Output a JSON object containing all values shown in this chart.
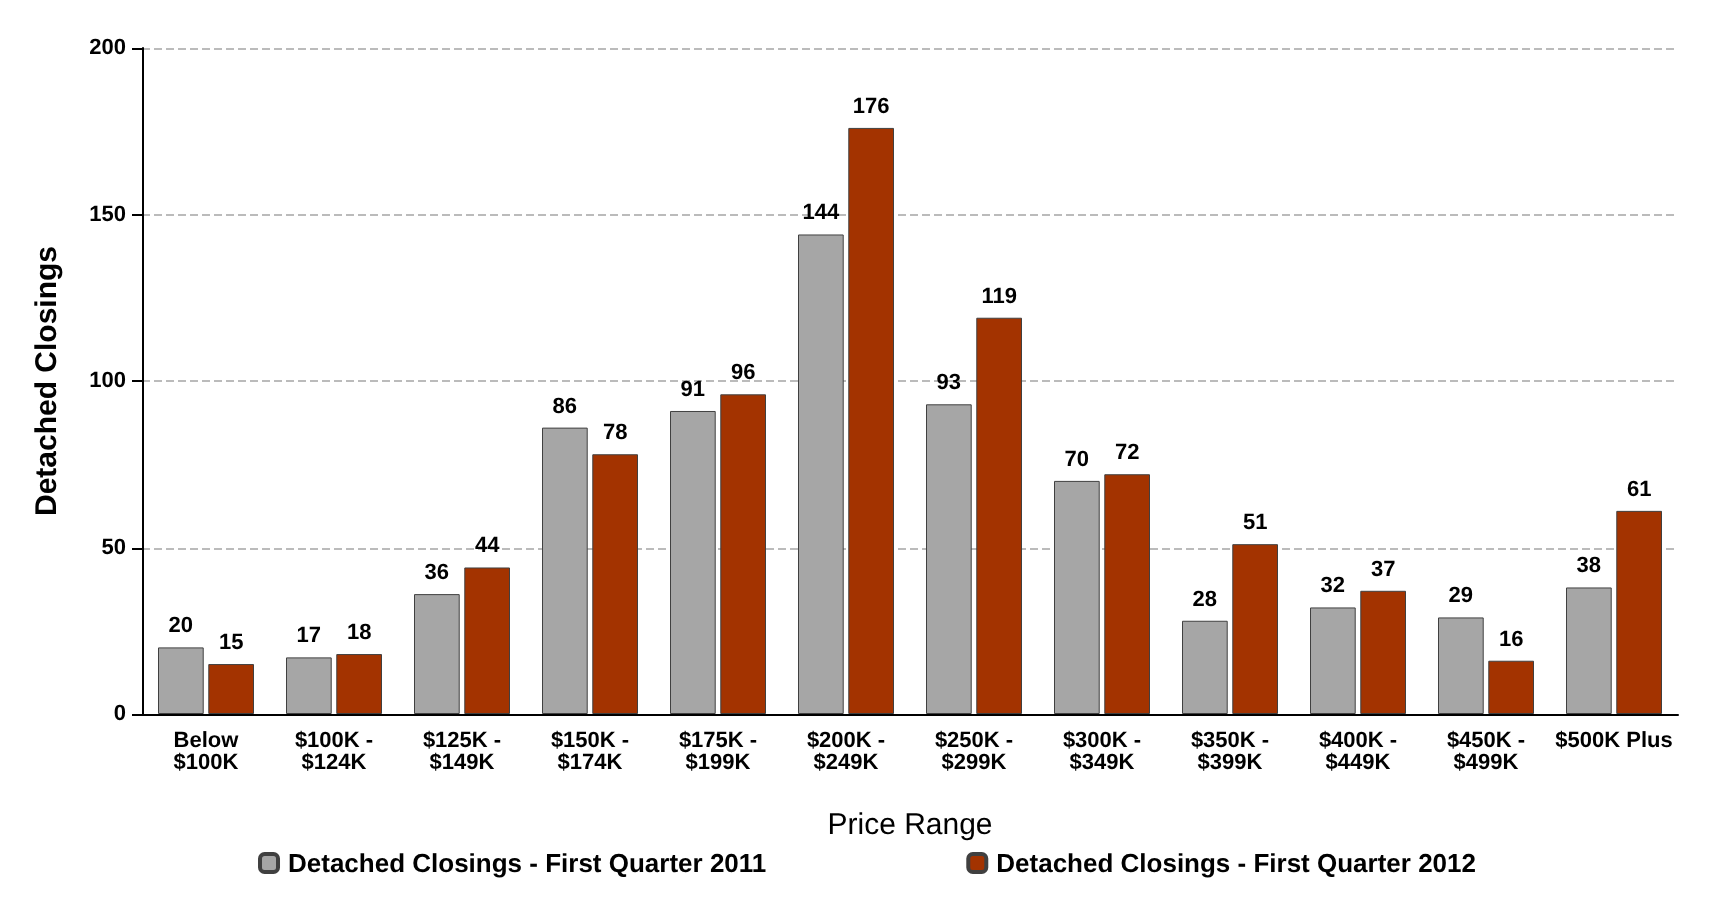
{
  "chart_data": {
    "type": "bar",
    "xlabel": "Price Range",
    "ylabel": "Detached Closings",
    "categories": [
      "Below\n$100K",
      "$100K -\n$124K",
      "$125K -\n$149K",
      "$150K -\n$174K",
      "$175K -\n$199K",
      "$200K -\n$249K",
      "$250K -\n$299K",
      "$300K -\n$349K",
      "$350K -\n$399K",
      "$400K -\n$449K",
      "$450K -\n$499K",
      "$500K Plus"
    ],
    "series": [
      {
        "name": "Detached Closings - First Quarter 2011",
        "color": "#a6a6a6",
        "values": [
          20,
          17,
          36,
          86,
          91,
          144,
          93,
          70,
          28,
          32,
          29,
          38
        ]
      },
      {
        "name": "Detached Closings - First Quarter 2012",
        "color": "#a33300",
        "values": [
          15,
          18,
          44,
          78,
          96,
          176,
          119,
          72,
          51,
          37,
          16,
          61
        ]
      }
    ],
    "ylim": [
      0,
      200
    ],
    "yticks": [
      0,
      50,
      100,
      150,
      200
    ],
    "grid": "y",
    "legend": "bottom",
    "data_labels": true
  }
}
